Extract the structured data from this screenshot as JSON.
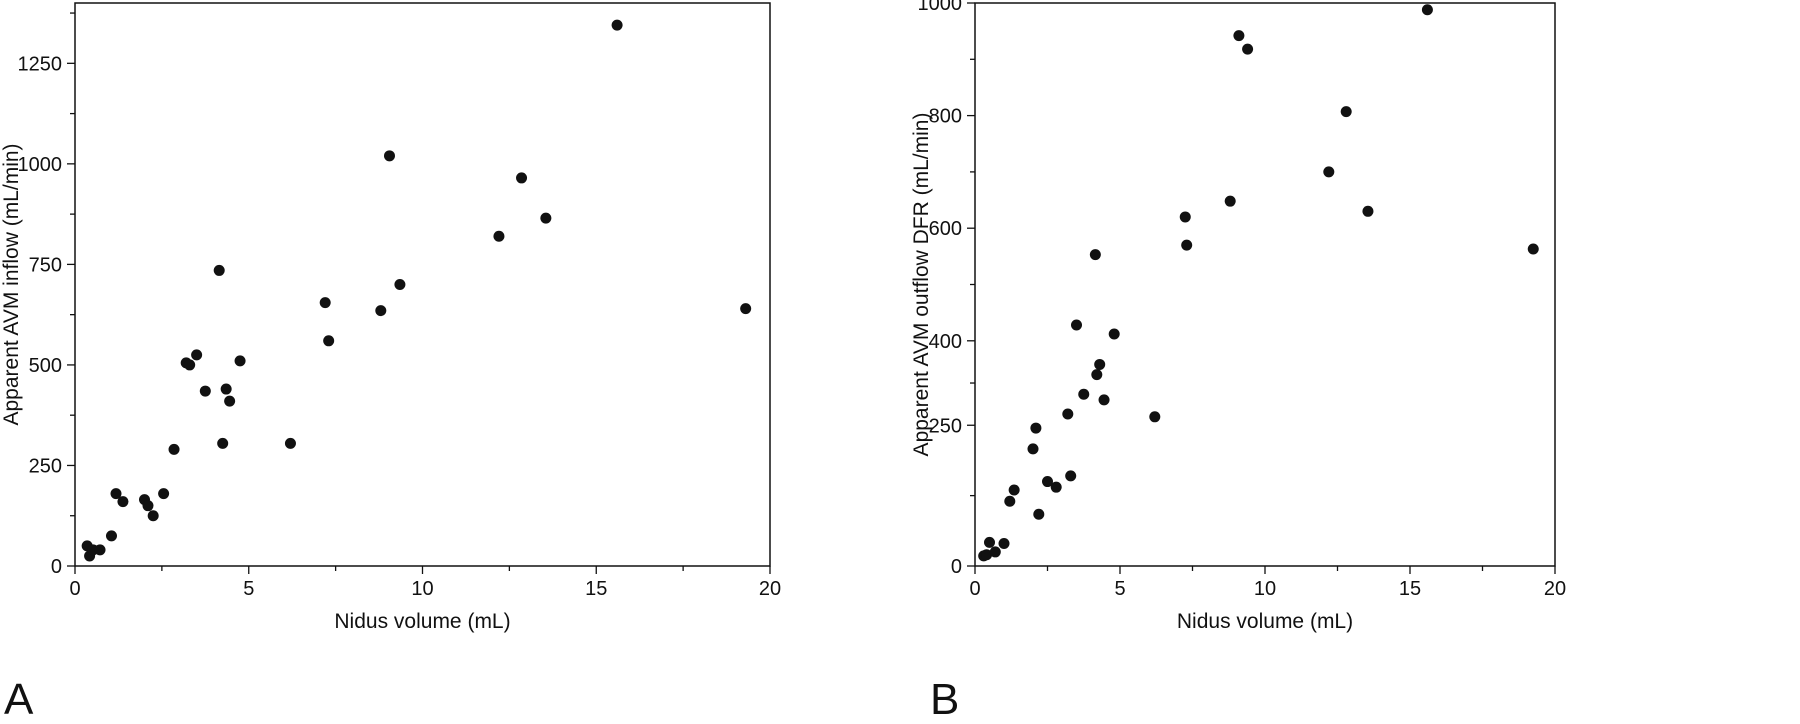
{
  "chart_data": [
    {
      "panel_label": "A",
      "type": "scatter",
      "xlabel": "Nidus volume (mL)",
      "ylabel": "Apparent AVM inflow (mL/min)",
      "xlim": [
        0,
        20
      ],
      "ylim": [
        0,
        1400
      ],
      "xticks": [
        0,
        5,
        10,
        15,
        20
      ],
      "yticks": [
        0,
        250,
        500,
        750,
        1000,
        1250
      ],
      "grid": false,
      "marker_color": "#111111",
      "x": [
        0.35,
        0.42,
        0.52,
        0.72,
        1.05,
        1.18,
        1.38,
        2.0,
        2.1,
        2.25,
        2.55,
        2.85,
        3.2,
        3.3,
        3.5,
        3.75,
        4.15,
        4.25,
        4.35,
        4.45,
        4.75,
        6.2,
        7.2,
        7.3,
        8.8,
        9.05,
        9.35,
        12.2,
        12.85,
        13.55,
        15.6,
        19.3
      ],
      "y": [
        50,
        25,
        40,
        40,
        75,
        180,
        160,
        165,
        150,
        125,
        180,
        290,
        505,
        500,
        525,
        435,
        735,
        305,
        440,
        410,
        510,
        305,
        655,
        560,
        635,
        1020,
        700,
        820,
        965,
        865,
        1345,
        640
      ]
    },
    {
      "panel_label": "B",
      "type": "scatter",
      "xlabel": "Nidus volume (mL)",
      "ylabel": "Apparent AVM outflow DFR (mL/min)",
      "xlim": [
        0,
        20
      ],
      "ylim": [
        0,
        1000
      ],
      "xticks": [
        0,
        5,
        10,
        15,
        20
      ],
      "yticks": [
        0,
        250,
        400,
        600,
        800,
        1000
      ],
      "grid": false,
      "marker_color": "#111111",
      "x": [
        0.3,
        0.4,
        0.5,
        0.7,
        1.0,
        1.2,
        1.35,
        2.0,
        2.1,
        2.2,
        2.5,
        2.8,
        3.2,
        3.3,
        3.5,
        3.75,
        4.15,
        4.2,
        4.3,
        4.45,
        4.8,
        6.2,
        7.25,
        7.3,
        8.8,
        9.1,
        9.4,
        12.2,
        12.8,
        13.55,
        15.6,
        19.25
      ],
      "y": [
        18,
        20,
        42,
        25,
        40,
        115,
        135,
        208,
        245,
        92,
        150,
        140,
        270,
        160,
        428,
        305,
        553,
        340,
        358,
        295,
        412,
        265,
        620,
        570,
        648,
        942,
        918,
        700,
        807,
        630,
        988,
        563
      ]
    }
  ]
}
